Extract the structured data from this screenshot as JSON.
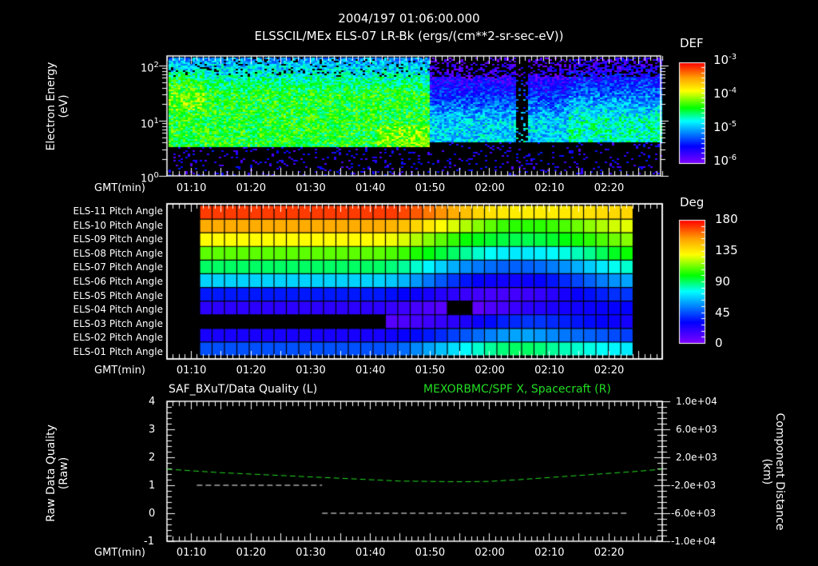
{
  "header": {
    "timestamp": "2004/197 01:06:00.000",
    "subtitle": "ELSSCIL/MEx ELS-07 LR-Bk  (ergs/(cm**2-sr-sec-eV))"
  },
  "time_axis": {
    "label": "GMT(min)",
    "ticks": [
      "01:10",
      "01:20",
      "01:30",
      "01:40",
      "01:50",
      "02:00",
      "02:10",
      "02:20"
    ],
    "start_min": 66,
    "end_min": 149
  },
  "panel1": {
    "ylabel_line1": "Electron Energy",
    "ylabel_line2": "(eV)",
    "yticks": [
      {
        "base": "10",
        "exp": "2"
      },
      {
        "base": "10",
        "exp": "1"
      },
      {
        "base": "10",
        "exp": "0"
      }
    ],
    "colorbar": {
      "title": "DEF",
      "ticks": [
        {
          "base": "10",
          "exp": "-3"
        },
        {
          "base": "10",
          "exp": "-4"
        },
        {
          "base": "10",
          "exp": "-5"
        },
        {
          "base": "10",
          "exp": "-6"
        }
      ]
    }
  },
  "panel2": {
    "rows": [
      "ELS-11 Pitch Angle",
      "ELS-10 Pitch Angle",
      "ELS-09 Pitch Angle",
      "ELS-08 Pitch Angle",
      "ELS-07 Pitch Angle",
      "ELS-06 Pitch Angle",
      "ELS-05 Pitch Angle",
      "ELS-04 Pitch Angle",
      "ELS-03 Pitch Angle",
      "ELS-02 Pitch Angle",
      "ELS-01 Pitch Angle"
    ],
    "colorbar": {
      "title": "Deg",
      "ticks": [
        "180",
        "135",
        "90",
        "45",
        "0"
      ]
    }
  },
  "panel3": {
    "title_left": "SAF_BXuT/Data Quality (L)",
    "title_right": "MEXORBMC/SPF X, Spacecraft (R)",
    "ylabel_left_line1": "Raw Data Quality",
    "ylabel_left_line2": "(Raw)",
    "ylabel_right_line1": "Component Distance",
    "ylabel_right_line2": "(km)",
    "yticks_left": [
      "4",
      "3",
      "2",
      "1",
      "0",
      "-1"
    ],
    "yticks_right": [
      "1.0e+04",
      "6.0e+03",
      "2.0e+03",
      "-2.0e+03",
      "-6.0e+03",
      "-1.0e+04"
    ]
  },
  "colors": {
    "background": "#000000",
    "axis": "#ffffff",
    "spf_line": "#22dd22",
    "quality_line": "#ffffff"
  },
  "chart_data": [
    {
      "type": "heatmap",
      "title": "ELSSCIL/MEx ELS-07 LR-Bk (ergs/(cm**2-sr-sec-eV))",
      "xlabel": "GMT(min)",
      "ylabel": "Electron Energy (eV)",
      "yscale": "log",
      "ylim": [
        1,
        150
      ],
      "xlim": [
        "01:06",
        "02:29"
      ],
      "colorbar": {
        "label": "DEF",
        "scale": "log",
        "range": [
          1e-06,
          0.001
        ]
      },
      "features": [
        {
          "x_range": [
            "01:06",
            "01:50"
          ],
          "energy_floor_eV": 3.5,
          "peak_DEF": 0.0001,
          "note": "intense green band 4-60 eV"
        },
        {
          "x_range": [
            "01:50",
            "02:29"
          ],
          "energy_floor_eV": 4.3,
          "peak_DEF": 3e-05,
          "note": "weaker cyan/blue band"
        },
        {
          "x_range": [
            "02:04",
            "02:06"
          ],
          "note": "dropout streaks"
        },
        {
          "x_range": [
            "02:13",
            "02:29"
          ],
          "peak_DEF": 5e-05,
          "note": "enhanced green 5-15 eV"
        }
      ]
    },
    {
      "type": "heatmap",
      "title": "Pitch Angle",
      "xlabel": "GMT(min)",
      "rows": [
        "ELS-11",
        "ELS-10",
        "ELS-09",
        "ELS-08",
        "ELS-07",
        "ELS-06",
        "ELS-05",
        "ELS-04",
        "ELS-03",
        "ELS-02",
        "ELS-01"
      ],
      "x": [
        "01:12",
        "01:14",
        "01:16",
        "01:18",
        "01:20",
        "01:22",
        "01:24",
        "01:26",
        "01:28",
        "01:30",
        "01:32",
        "01:34",
        "01:36",
        "01:38",
        "01:40",
        "01:42",
        "01:44",
        "01:46",
        "01:48",
        "01:50",
        "01:52",
        "01:54",
        "01:56",
        "01:58",
        "02:00",
        "02:02",
        "02:04",
        "02:06",
        "02:08",
        "02:10",
        "02:12",
        "02:14",
        "02:16",
        "02:18",
        "02:20"
      ],
      "colorbar": {
        "label": "Deg",
        "range": [
          0,
          180
        ]
      },
      "values_deg": [
        [
          170,
          170,
          170,
          170,
          170,
          170,
          170,
          170,
          170,
          170,
          170,
          170,
          170,
          170,
          170,
          170,
          168,
          165,
          160,
          155,
          150,
          145,
          140,
          137,
          135,
          134,
          134,
          134,
          134,
          135,
          136,
          137,
          138,
          139,
          140
        ],
        [
          150,
          150,
          150,
          150,
          150,
          150,
          150,
          150,
          150,
          150,
          150,
          150,
          150,
          150,
          150,
          148,
          145,
          140,
          135,
          130,
          125,
          120,
          115,
          110,
          106,
          104,
          104,
          104,
          106,
          108,
          112,
          116,
          120,
          124,
          126
        ],
        [
          130,
          130,
          130,
          130,
          130,
          130,
          130,
          130,
          130,
          130,
          130,
          130,
          130,
          130,
          130,
          128,
          125,
          120,
          115,
          110,
          105,
          100,
          97,
          95,
          93,
          92,
          92,
          93,
          95,
          98,
          101,
          104,
          108,
          112,
          115
        ],
        [
          110,
          110,
          110,
          110,
          110,
          110,
          110,
          110,
          110,
          110,
          110,
          110,
          110,
          110,
          110,
          108,
          106,
          102,
          98,
          94,
          90,
          85,
          80,
          76,
          73,
          72,
          72,
          73,
          75,
          78,
          82,
          86,
          91,
          96,
          100
        ],
        [
          90,
          90,
          90,
          90,
          90,
          90,
          90,
          90,
          90,
          90,
          90,
          90,
          90,
          90,
          90,
          88,
          85,
          80,
          74,
          68,
          62,
          56,
          52,
          50,
          48,
          48,
          48,
          50,
          53,
          57,
          62,
          67,
          72,
          77,
          80
        ],
        [
          68,
          68,
          68,
          68,
          68,
          68,
          68,
          68,
          68,
          68,
          68,
          68,
          68,
          68,
          68,
          66,
          63,
          58,
          52,
          46,
          40,
          34,
          30,
          28,
          27,
          27,
          28,
          30,
          34,
          38,
          43,
          48,
          53,
          57,
          60
        ],
        [
          35,
          35,
          35,
          35,
          35,
          35,
          35,
          35,
          35,
          35,
          35,
          35,
          35,
          35,
          35,
          33,
          30,
          28,
          25,
          22,
          20,
          17,
          15,
          14,
          14,
          15,
          16,
          18,
          21,
          25,
          29,
          33,
          36,
          39,
          40
        ],
        [
          20,
          20,
          20,
          20,
          20,
          20,
          20,
          20,
          20,
          20,
          20,
          20,
          20,
          20,
          20,
          18,
          16,
          14,
          12,
          10,
          null,
          null,
          8,
          12,
          14,
          17,
          20,
          22,
          24,
          26,
          27,
          28,
          29,
          30,
          30
        ],
        [
          null,
          null,
          null,
          null,
          null,
          null,
          null,
          null,
          null,
          null,
          null,
          null,
          null,
          null,
          null,
          10,
          12,
          14,
          16,
          18,
          20,
          24,
          28,
          32,
          36,
          38,
          40,
          40,
          38,
          36,
          34,
          32,
          30,
          28,
          26
        ],
        [
          25,
          25,
          25,
          25,
          25,
          25,
          25,
          25,
          25,
          25,
          25,
          25,
          25,
          25,
          25,
          27,
          29,
          32,
          35,
          38,
          42,
          46,
          50,
          54,
          58,
          60,
          60,
          58,
          55,
          52,
          50,
          48,
          46,
          44,
          42
        ],
        [
          45,
          45,
          45,
          45,
          45,
          45,
          45,
          45,
          45,
          45,
          45,
          45,
          45,
          45,
          45,
          47,
          50,
          55,
          60,
          65,
          70,
          75,
          80,
          85,
          88,
          90,
          90,
          88,
          85,
          82,
          80,
          78,
          76,
          74,
          72
        ]
      ]
    },
    {
      "type": "line",
      "title": "SAF_BXuT/Data Quality (L) ; MEXORBMC/SPF X, Spacecraft (R)",
      "xlabel": "GMT(min)",
      "ylabel": "Raw Data Quality (Raw)",
      "ylabel_right": "Component Distance (km)",
      "ylim": [
        -1,
        4
      ],
      "ylim_right": [
        -10000,
        10000
      ],
      "series": [
        {
          "name": "SAF_BXuT/Data Quality",
          "axis": "left",
          "color": "#ffffff",
          "style": "dashed",
          "x": [
            "01:11",
            "01:32",
            "01:32",
            "02:23"
          ],
          "values": [
            1,
            1,
            0,
            0
          ]
        },
        {
          "name": "MEXORBMC/SPF X, Spacecraft",
          "axis": "right",
          "color": "#22dd22",
          "style": "dashed",
          "x": [
            "01:06",
            "01:15",
            "01:25",
            "01:35",
            "01:45",
            "01:55",
            "02:00",
            "02:05",
            "02:15",
            "02:25",
            "02:29"
          ],
          "values": [
            300,
            -200,
            -600,
            -1000,
            -1400,
            -1500,
            -1450,
            -1200,
            -600,
            0,
            300
          ]
        }
      ]
    }
  ]
}
